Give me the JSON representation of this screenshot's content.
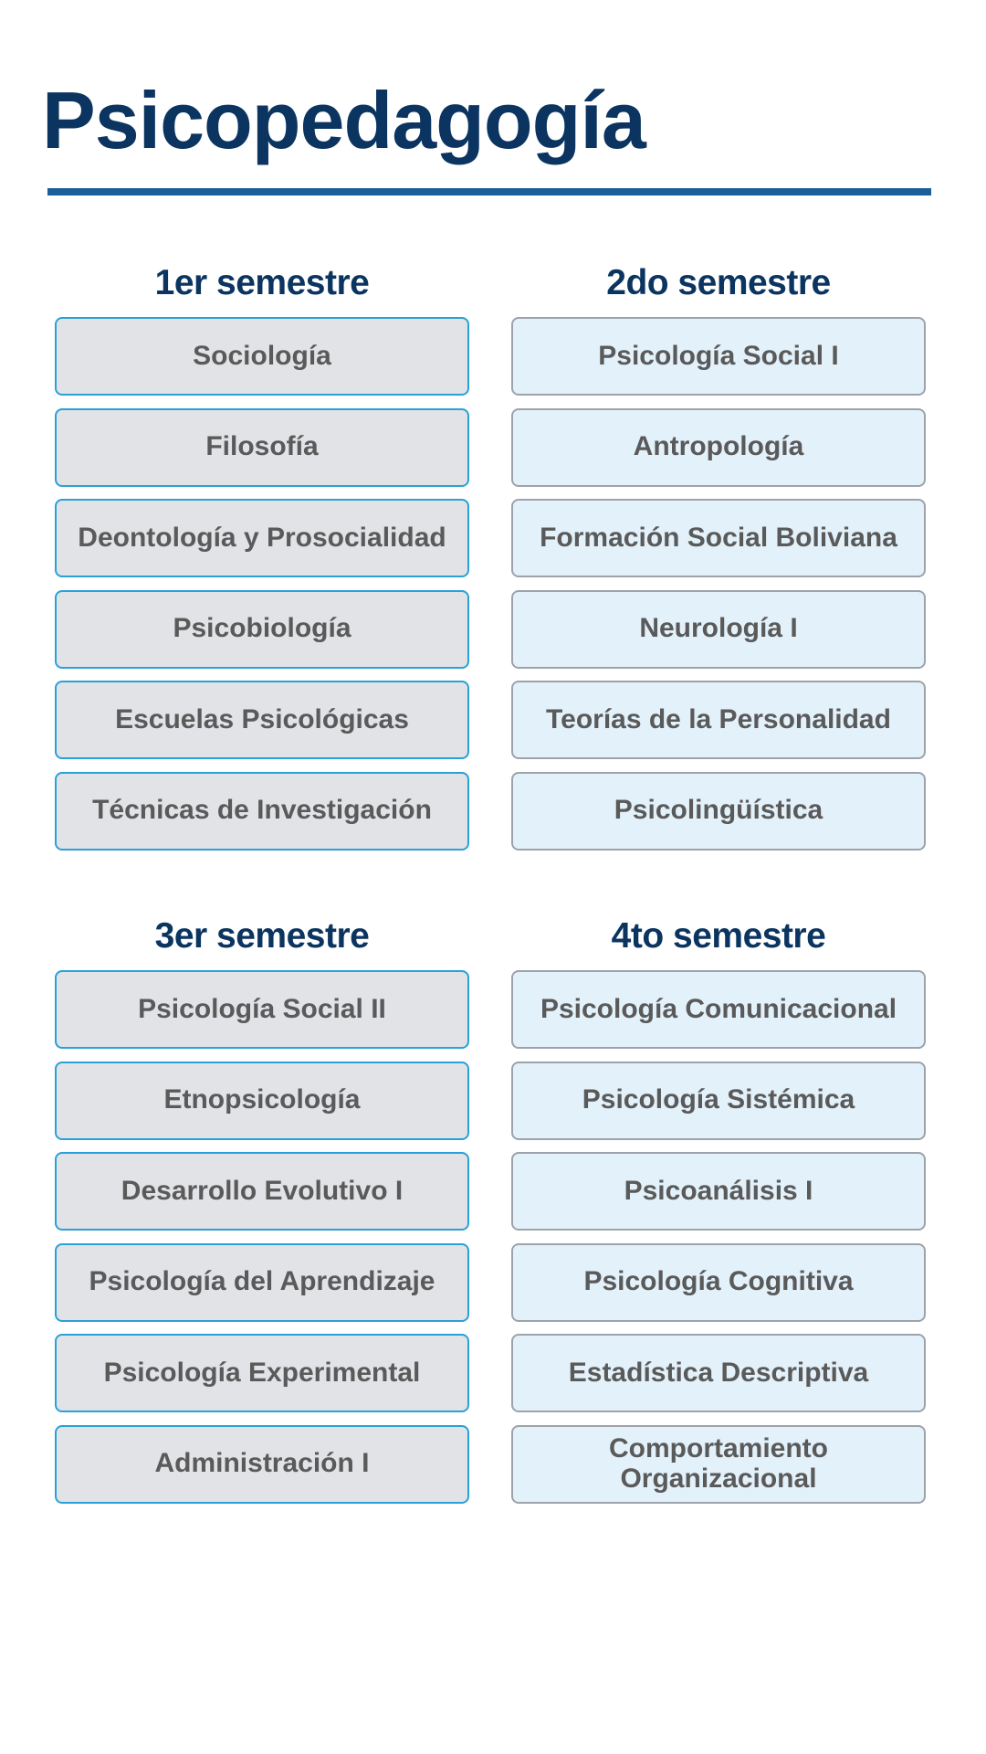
{
  "title": "Psicopedagogía",
  "colors": {
    "title": "#0b3560",
    "rule": "#1a5d99",
    "left_box_fill": "#e2e3e7",
    "left_box_border": "#2aa1d8",
    "right_box_fill": "#e3f1fa",
    "right_box_border": "#9da3ab",
    "course_text": "#5a5a5a"
  },
  "semesters": [
    {
      "heading": "1er semestre",
      "courses": [
        "Sociología",
        "Filosofía",
        "Deontología y Prosocialidad",
        "Psicobiología",
        "Escuelas Psicológicas",
        "Técnicas de Investigación"
      ]
    },
    {
      "heading": "2do semestre",
      "courses": [
        "Psicología Social I",
        "Antropología",
        "Formación Social Boliviana",
        "Neurología I",
        "Teorías de la Personalidad",
        "Psicolingüística"
      ]
    },
    {
      "heading": "3er semestre",
      "courses": [
        "Psicología Social II",
        "Etnopsicología",
        "Desarrollo Evolutivo I",
        "Psicología del Aprendizaje",
        "Psicología Experimental",
        "Administración I"
      ]
    },
    {
      "heading": "4to semestre",
      "courses": [
        "Psicología Comunicacional",
        "Psicología Sistémica",
        "Psicoanálisis I",
        "Psicología Cognitiva",
        "Estadística Descriptiva",
        "Comportamiento Organizacional"
      ]
    }
  ]
}
